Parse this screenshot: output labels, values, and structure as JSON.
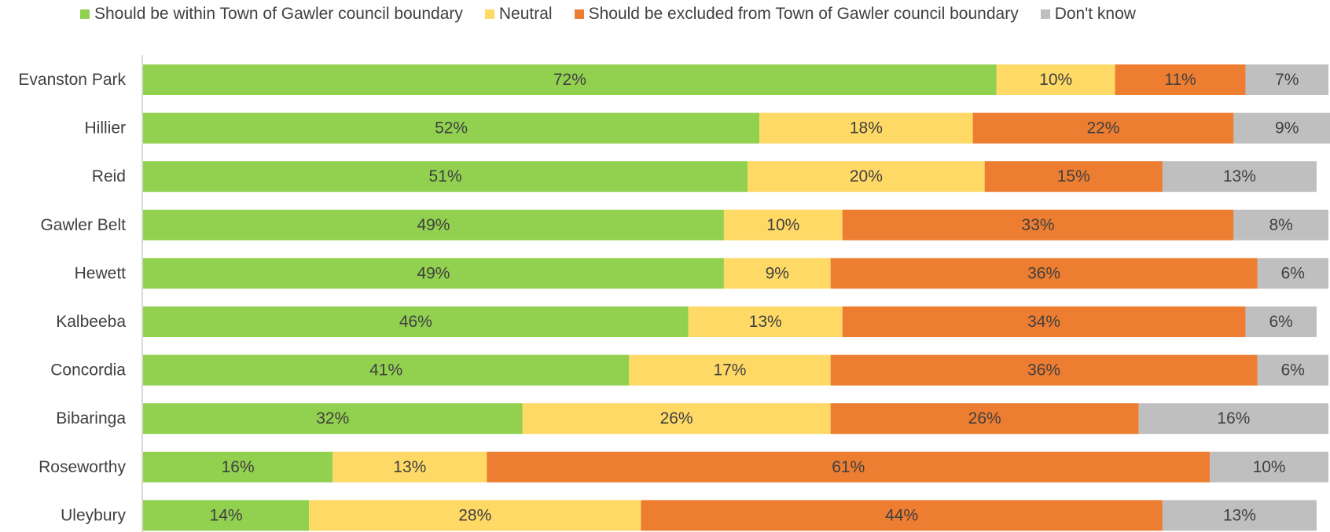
{
  "chart_data": {
    "type": "bar",
    "orientation": "horizontal",
    "stacked": true,
    "percent_stacked": true,
    "title": "",
    "xlabel": "",
    "ylabel": "",
    "xlim": [
      0,
      100
    ],
    "grid": false,
    "legend_position": "top",
    "categories": [
      "Evanston Park",
      "Hillier",
      "Reid",
      "Gawler Belt",
      "Hewett",
      "Kalbeeba",
      "Concordia",
      "Bibaringa",
      "Roseworthy",
      "Uleybury"
    ],
    "series": [
      {
        "name": "Should be within Town of Gawler council boundary",
        "color": "#92d050",
        "values": [
          72,
          52,
          51,
          49,
          49,
          46,
          41,
          32,
          16,
          14
        ]
      },
      {
        "name": "Neutral",
        "color": "#ffd966",
        "values": [
          10,
          18,
          20,
          10,
          9,
          13,
          17,
          26,
          13,
          28
        ]
      },
      {
        "name": "Should be excluded from Town of Gawler council boundary",
        "color": "#ed7d31",
        "values": [
          11,
          22,
          15,
          33,
          36,
          34,
          36,
          26,
          61,
          44
        ]
      },
      {
        "name": "Don't know",
        "color": "#bfbfbf",
        "values": [
          7,
          9,
          13,
          8,
          6,
          6,
          6,
          16,
          10,
          13
        ]
      }
    ]
  }
}
